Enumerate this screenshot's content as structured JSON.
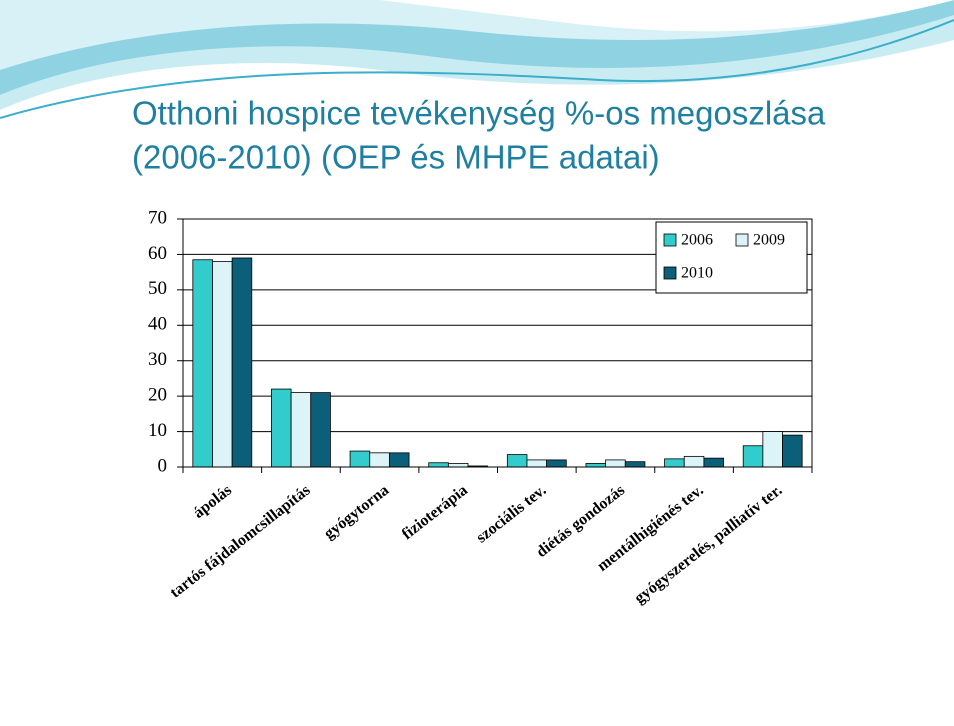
{
  "chart_data": {
    "type": "bar",
    "title": [
      "Otthoni hospice tevékenység %-os megoszlása",
      "(2006-2010) (OEP és MHPE adatai)"
    ],
    "categories": [
      "ápolás",
      "tartós fájdalomcsillapítás",
      "gyógytorna",
      "fizioterápia",
      "szociális tev.",
      "diétás gondozás",
      "mentálhigiénés tev.",
      "gyógyszerelés, palliatív ter."
    ],
    "series": [
      {
        "name": "2006",
        "color": "#33cccc",
        "values": [
          58.5,
          22,
          4.5,
          1.2,
          3.5,
          1,
          2.3,
          6
        ]
      },
      {
        "name": "2009",
        "color": "#dcf4f7",
        "values": [
          58,
          21,
          4,
          1,
          2,
          2,
          3,
          10
        ]
      },
      {
        "name": "2010",
        "color": "#0b5f78",
        "values": [
          59,
          21,
          4,
          0.3,
          2,
          1.5,
          2.5,
          9
        ]
      }
    ],
    "ylim": [
      0,
      70
    ],
    "yticks": [
      0,
      10,
      20,
      30,
      40,
      50,
      60,
      70
    ],
    "grid": true,
    "legend": "upper right"
  }
}
